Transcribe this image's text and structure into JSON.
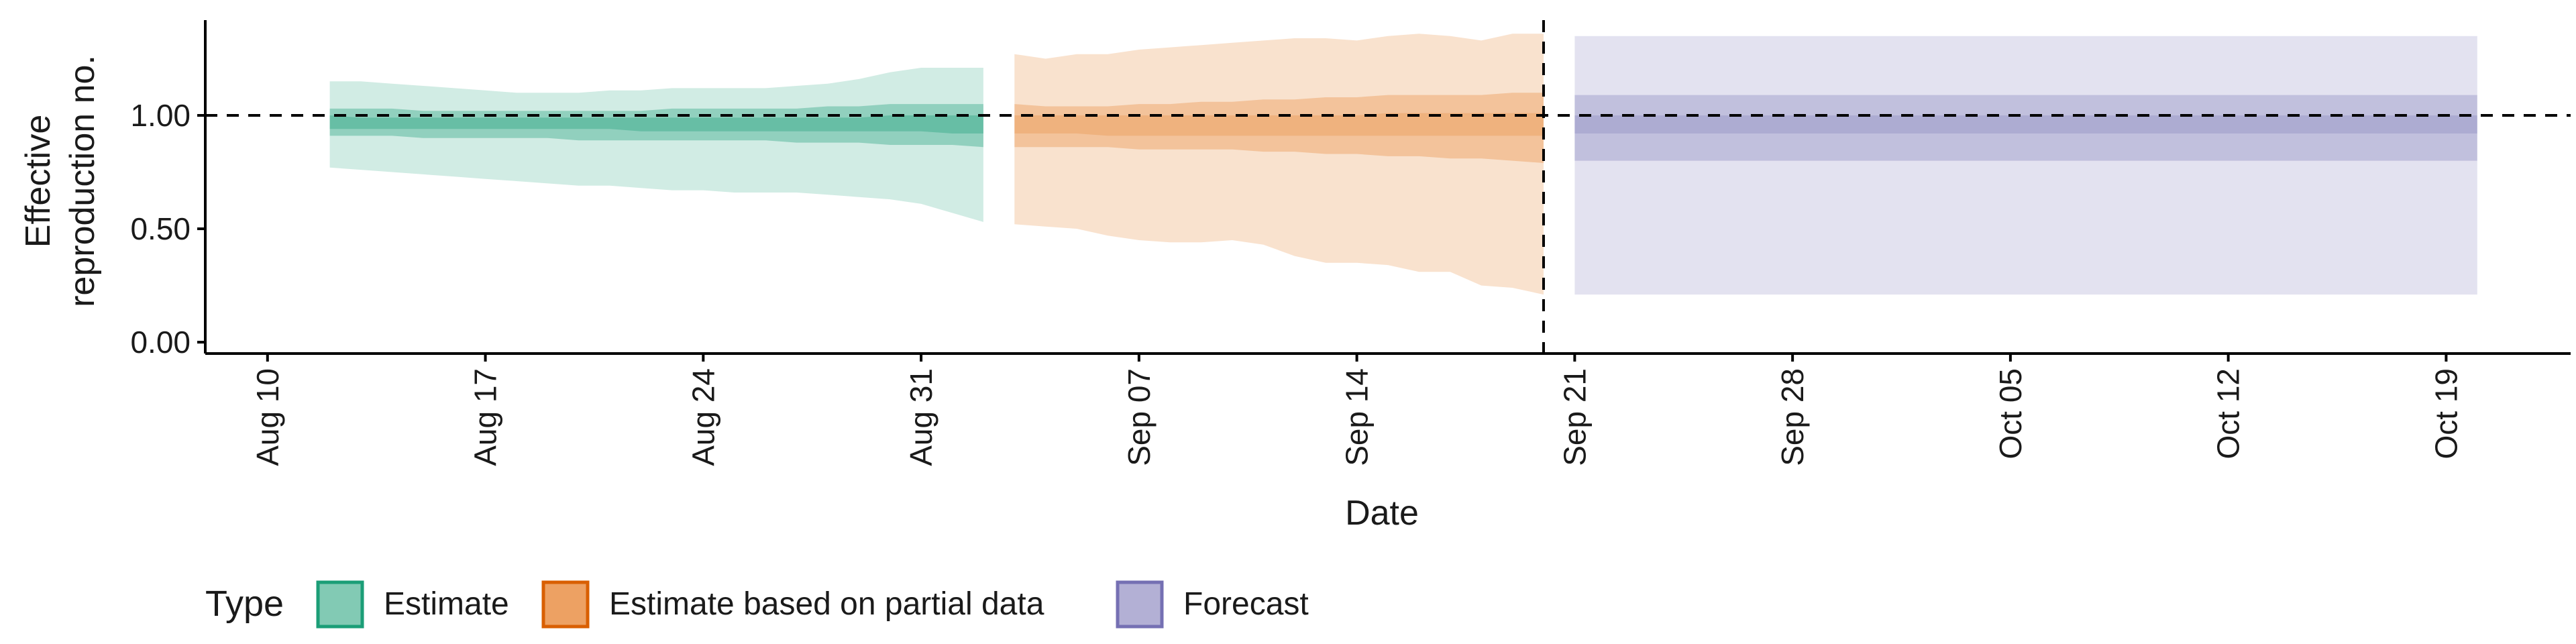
{
  "colors": {
    "estimate_fill": "#1B9E77",
    "partial_fill": "#E98A3C",
    "forecast_fill": "#7570B3",
    "estimate_stroke": "#1B9E77",
    "partial_stroke": "#D95F02",
    "forecast_stroke": "#7570B3",
    "reference_line": "#000000",
    "axis": "#000000"
  },
  "chart_data": {
    "type": "area",
    "title": "",
    "xlabel": "Date",
    "ylabel_lines": [
      "Effective",
      "reproduction no."
    ],
    "x_ticks": [
      "Aug 10",
      "Aug 17",
      "Aug 24",
      "Aug 31",
      "Sep 07",
      "Sep 14",
      "Sep 21",
      "Sep 28",
      "Oct 05",
      "Oct 12",
      "Oct 19"
    ],
    "y_ticks": [
      "0.00",
      "0.50",
      "1.00"
    ],
    "y_tick_values": [
      0,
      0.5,
      1.0
    ],
    "ylim": [
      -0.05,
      1.42
    ],
    "xlim": [
      "2020-08-08",
      "2020-10-23"
    ],
    "hline_y": 1.0,
    "vline_x": "2020-09-20",
    "grid": false,
    "legend": {
      "title": "Type",
      "position": "bottom-left",
      "entries": [
        "Estimate",
        "Estimate based on partial data",
        "Forecast"
      ]
    },
    "series": [
      {
        "name": "Estimate",
        "x": [
          "2020-08-12",
          "2020-08-13",
          "2020-08-14",
          "2020-08-15",
          "2020-08-16",
          "2020-08-17",
          "2020-08-18",
          "2020-08-19",
          "2020-08-20",
          "2020-08-21",
          "2020-08-22",
          "2020-08-23",
          "2020-08-24",
          "2020-08-25",
          "2020-08-26",
          "2020-08-27",
          "2020-08-28",
          "2020-08-29",
          "2020-08-30",
          "2020-08-31",
          "2020-09-01",
          "2020-09-02"
        ],
        "lower_90": [
          0.77,
          0.76,
          0.75,
          0.74,
          0.73,
          0.72,
          0.71,
          0.7,
          0.69,
          0.69,
          0.68,
          0.67,
          0.67,
          0.66,
          0.66,
          0.66,
          0.65,
          0.64,
          0.63,
          0.61,
          0.57,
          0.53
        ],
        "upper_90": [
          1.15,
          1.15,
          1.14,
          1.13,
          1.12,
          1.11,
          1.1,
          1.1,
          1.1,
          1.11,
          1.11,
          1.12,
          1.12,
          1.12,
          1.12,
          1.13,
          1.14,
          1.16,
          1.19,
          1.21,
          1.21,
          1.21
        ],
        "lower_50": [
          0.91,
          0.91,
          0.91,
          0.9,
          0.9,
          0.9,
          0.9,
          0.9,
          0.89,
          0.89,
          0.89,
          0.89,
          0.89,
          0.89,
          0.89,
          0.88,
          0.88,
          0.88,
          0.87,
          0.87,
          0.87,
          0.86
        ],
        "upper_50": [
          1.03,
          1.03,
          1.03,
          1.02,
          1.02,
          1.02,
          1.02,
          1.02,
          1.02,
          1.02,
          1.02,
          1.03,
          1.03,
          1.03,
          1.03,
          1.03,
          1.04,
          1.04,
          1.05,
          1.05,
          1.05,
          1.05
        ],
        "lower_20": [
          0.94,
          0.94,
          0.94,
          0.94,
          0.94,
          0.94,
          0.94,
          0.94,
          0.94,
          0.94,
          0.93,
          0.93,
          0.93,
          0.93,
          0.93,
          0.93,
          0.93,
          0.93,
          0.93,
          0.93,
          0.92,
          0.92
        ],
        "upper_20": [
          1.0,
          0.99,
          0.99,
          0.99,
          0.99,
          0.99,
          0.99,
          0.99,
          0.99,
          0.99,
          0.99,
          0.99,
          0.99,
          0.99,
          0.99,
          0.99,
          0.99,
          0.99,
          1.0,
          1.0,
          1.0,
          1.0
        ]
      },
      {
        "name": "Estimate based on partial data",
        "x": [
          "2020-09-03",
          "2020-09-04",
          "2020-09-05",
          "2020-09-06",
          "2020-09-07",
          "2020-09-08",
          "2020-09-09",
          "2020-09-10",
          "2020-09-11",
          "2020-09-12",
          "2020-09-13",
          "2020-09-14",
          "2020-09-15",
          "2020-09-16",
          "2020-09-17",
          "2020-09-18",
          "2020-09-19",
          "2020-09-20"
        ],
        "lower_90": [
          0.52,
          0.51,
          0.5,
          0.47,
          0.45,
          0.44,
          0.44,
          0.45,
          0.43,
          0.38,
          0.35,
          0.35,
          0.34,
          0.31,
          0.31,
          0.25,
          0.24,
          0.21
        ],
        "upper_90": [
          1.27,
          1.25,
          1.27,
          1.27,
          1.29,
          1.3,
          1.31,
          1.32,
          1.33,
          1.34,
          1.34,
          1.33,
          1.35,
          1.36,
          1.35,
          1.33,
          1.36,
          1.36
        ],
        "lower_50": [
          0.86,
          0.86,
          0.86,
          0.86,
          0.85,
          0.85,
          0.85,
          0.85,
          0.84,
          0.84,
          0.83,
          0.83,
          0.82,
          0.82,
          0.81,
          0.81,
          0.8,
          0.79
        ],
        "upper_50": [
          1.05,
          1.04,
          1.04,
          1.04,
          1.05,
          1.05,
          1.06,
          1.06,
          1.07,
          1.07,
          1.08,
          1.08,
          1.09,
          1.09,
          1.09,
          1.09,
          1.1,
          1.1
        ],
        "lower_20": [
          0.92,
          0.92,
          0.92,
          0.91,
          0.91,
          0.91,
          0.91,
          0.91,
          0.91,
          0.91,
          0.91,
          0.91,
          0.91,
          0.91,
          0.91,
          0.91,
          0.91,
          0.91
        ],
        "upper_20": [
          1.0,
          1.0,
          1.0,
          1.0,
          1.0,
          1.0,
          1.0,
          1.0,
          1.0,
          1.0,
          1.0,
          1.0,
          1.01,
          1.01,
          1.01,
          1.01,
          1.01,
          1.01
        ]
      },
      {
        "name": "Forecast",
        "x": [
          "2020-09-21",
          "2020-10-20"
        ],
        "lower_90": [
          0.21,
          0.21
        ],
        "upper_90": [
          1.35,
          1.35
        ],
        "lower_50": [
          0.8,
          0.8
        ],
        "upper_50": [
          1.09,
          1.09
        ],
        "lower_20": [
          0.92,
          0.92
        ],
        "upper_20": [
          1.0,
          1.0
        ]
      }
    ]
  }
}
